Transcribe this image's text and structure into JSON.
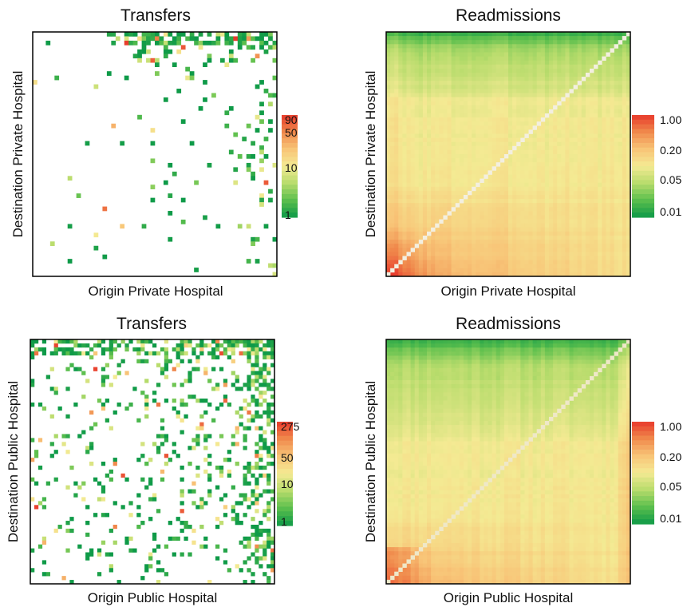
{
  "chart_data": [
    {
      "type": "heatmap",
      "title": "Transfers",
      "xlabel": "Origin Private Hospital",
      "ylabel": "Destination Private Hospital",
      "scale": "log",
      "colorbar": {
        "ticks": [
          "90",
          "50",
          "10",
          "1"
        ],
        "tick_values": [
          90,
          50,
          10,
          1
        ],
        "range": [
          1,
          100
        ]
      },
      "grid": false,
      "note": "sparse matrix of transfer counts between private hospitals; most cells empty, non-empty cells 1-90"
    },
    {
      "type": "heatmap",
      "title": "Readmissions",
      "xlabel": "Origin Private Hospital",
      "ylabel": "Destination Private Hospital",
      "scale": "log",
      "colorbar": {
        "ticks": [
          "1.00",
          "0.20",
          "0.05",
          "0.01"
        ],
        "tick_values": [
          1.0,
          0.2,
          0.05,
          0.01
        ],
        "range": [
          0.005,
          1.2
        ]
      },
      "grid": false,
      "note": "dense matrix of readmission rates; low rates along top rows, high rates in bottom-left corner, light diagonal"
    },
    {
      "type": "heatmap",
      "title": "Transfers",
      "xlabel": "Origin Public Hospital",
      "ylabel": "Destination Public Hospital",
      "scale": "log",
      "colorbar": {
        "ticks": [
          "275",
          "50",
          "10",
          "1"
        ],
        "tick_values": [
          275,
          50,
          10,
          1
        ],
        "range": [
          1,
          300
        ]
      },
      "grid": false,
      "note": "sparse matrix of transfer counts between public hospitals; denser toward top-right, counts 1-275"
    },
    {
      "type": "heatmap",
      "title": "Readmissions",
      "xlabel": "Origin Public Hospital",
      "ylabel": "Destination Public Hospital",
      "scale": "log",
      "colorbar": {
        "ticks": [
          "1.00",
          "0.20",
          "0.05",
          "0.01"
        ],
        "tick_values": [
          1.0,
          0.2,
          0.05,
          0.01
        ],
        "range": [
          0.005,
          1.2
        ]
      },
      "grid": false,
      "note": "dense matrix of readmission rates; green top rows, orange-red bottom-left and right edge, light diagonal"
    }
  ],
  "colors": {
    "scale": [
      "#0e9a48",
      "#5cbf4d",
      "#b8dc6c",
      "#f4ea93",
      "#f8c477",
      "#f08a4c",
      "#e8392b"
    ],
    "frame": "#000000",
    "diagonal": "#f4f0e0"
  }
}
